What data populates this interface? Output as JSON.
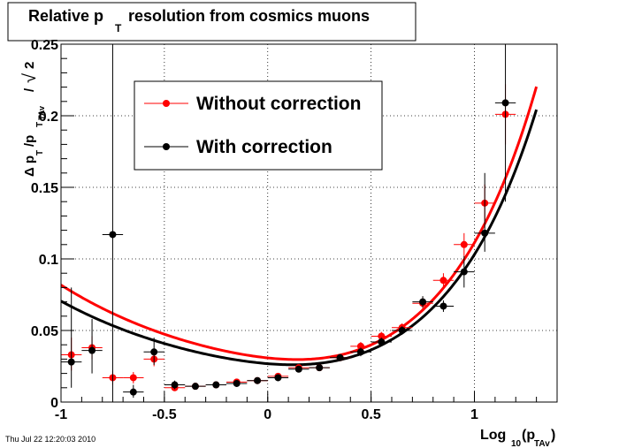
{
  "chart_data": {
    "type": "scatter",
    "title_main": "Relative p",
    "title_sub": "T",
    "title_rest": " resolution from cosmics muons",
    "ylabel": {
      "delta": "Δ p",
      "slash1": "/p",
      "sub_t": "T",
      "sub_tav": "TAv",
      "slash2": "/",
      "sqrt_sign": "√",
      "two": "2"
    },
    "xlabel": {
      "main": "Log",
      "sub_ten": "10",
      "paren_open": "(p",
      "sub_tav": "TAv",
      "paren_close": ")"
    },
    "xlim": [
      -1,
      1.4
    ],
    "ylim": [
      0,
      0.25
    ],
    "x_ticks": [
      {
        "v": -1,
        "label": "-1"
      },
      {
        "v": -0.5,
        "label": "-0.5"
      },
      {
        "v": 0,
        "label": "0"
      },
      {
        "v": 0.5,
        "label": "0.5"
      },
      {
        "v": 1,
        "label": "1"
      }
    ],
    "y_ticks": [
      {
        "v": 0,
        "label": "0"
      },
      {
        "v": 0.05,
        "label": "0.05"
      },
      {
        "v": 0.1,
        "label": "0.1"
      },
      {
        "v": 0.15,
        "label": "0.15"
      },
      {
        "v": 0.2,
        "label": "0.2"
      },
      {
        "v": 0.25,
        "label": "0.25"
      }
    ],
    "grid": true,
    "legend_placement": "top-left",
    "timestamp": "Thu Jul 22 12:20:03 2010",
    "series": [
      {
        "name": "Without correction",
        "color": "#ff0000",
        "points": [
          {
            "x": -0.95,
            "y": 0.033,
            "ylo": 0.022,
            "yhi": 0.045
          },
          {
            "x": -0.85,
            "y": 0.038,
            "ylo": 0.03,
            "yhi": 0.046
          },
          {
            "x": -0.75,
            "y": 0.017,
            "ylo": 0.012,
            "yhi": 0.022
          },
          {
            "x": -0.65,
            "y": 0.017,
            "ylo": 0.013,
            "yhi": 0.021
          },
          {
            "x": -0.55,
            "y": 0.03,
            "ylo": 0.025,
            "yhi": 0.035
          },
          {
            "x": -0.45,
            "y": 0.01,
            "ylo": 0.008,
            "yhi": 0.012
          },
          {
            "x": -0.35,
            "y": 0.011,
            "ylo": 0.009,
            "yhi": 0.013
          },
          {
            "x": -0.25,
            "y": 0.012,
            "ylo": 0.01,
            "yhi": 0.014
          },
          {
            "x": -0.15,
            "y": 0.014,
            "ylo": 0.012,
            "yhi": 0.016
          },
          {
            "x": -0.05,
            "y": 0.015,
            "ylo": 0.013,
            "yhi": 0.017
          },
          {
            "x": 0.05,
            "y": 0.018,
            "ylo": 0.016,
            "yhi": 0.02
          },
          {
            "x": 0.15,
            "y": 0.024,
            "ylo": 0.022,
            "yhi": 0.026
          },
          {
            "x": 0.25,
            "y": 0.024,
            "ylo": 0.022,
            "yhi": 0.026
          },
          {
            "x": 0.35,
            "y": 0.031,
            "ylo": 0.029,
            "yhi": 0.033
          },
          {
            "x": 0.45,
            "y": 0.039,
            "ylo": 0.036,
            "yhi": 0.042
          },
          {
            "x": 0.55,
            "y": 0.046,
            "ylo": 0.043,
            "yhi": 0.049
          },
          {
            "x": 0.65,
            "y": 0.052,
            "ylo": 0.049,
            "yhi": 0.055
          },
          {
            "x": 0.75,
            "y": 0.069,
            "ylo": 0.065,
            "yhi": 0.073
          },
          {
            "x": 0.85,
            "y": 0.085,
            "ylo": 0.08,
            "yhi": 0.09
          },
          {
            "x": 0.95,
            "y": 0.11,
            "ylo": 0.102,
            "yhi": 0.118
          },
          {
            "x": 1.05,
            "y": 0.139,
            "ylo": 0.125,
            "yhi": 0.152
          },
          {
            "x": 1.15,
            "y": 0.201,
            "ylo": 0.18,
            "yhi": 0.222
          }
        ],
        "fit": {
          "a": 0.0134,
          "b": 0.1102,
          "c": 0.0255,
          "x0": -1,
          "x1": 1.3
        }
      },
      {
        "name": "With correction",
        "color": "#000000",
        "points": [
          {
            "x": -0.95,
            "y": 0.028,
            "ylo": 0.01,
            "yhi": 0.08
          },
          {
            "x": -0.85,
            "y": 0.036,
            "ylo": 0.02,
            "yhi": 0.058
          },
          {
            "x": -0.75,
            "y": 0.117,
            "ylo": 0.0,
            "yhi": 0.25
          },
          {
            "x": -0.65,
            "y": 0.007,
            "ylo": 0.003,
            "yhi": 0.012
          },
          {
            "x": -0.55,
            "y": 0.035,
            "ylo": 0.026,
            "yhi": 0.045
          },
          {
            "x": -0.45,
            "y": 0.012,
            "ylo": 0.009,
            "yhi": 0.015
          },
          {
            "x": -0.35,
            "y": 0.011,
            "ylo": 0.009,
            "yhi": 0.013
          },
          {
            "x": -0.25,
            "y": 0.012,
            "ylo": 0.01,
            "yhi": 0.014
          },
          {
            "x": -0.15,
            "y": 0.013,
            "ylo": 0.011,
            "yhi": 0.015
          },
          {
            "x": -0.05,
            "y": 0.015,
            "ylo": 0.013,
            "yhi": 0.017
          },
          {
            "x": 0.05,
            "y": 0.017,
            "ylo": 0.015,
            "yhi": 0.019
          },
          {
            "x": 0.15,
            "y": 0.023,
            "ylo": 0.021,
            "yhi": 0.025
          },
          {
            "x": 0.25,
            "y": 0.024,
            "ylo": 0.022,
            "yhi": 0.026
          },
          {
            "x": 0.35,
            "y": 0.031,
            "ylo": 0.029,
            "yhi": 0.033
          },
          {
            "x": 0.45,
            "y": 0.035,
            "ylo": 0.032,
            "yhi": 0.038
          },
          {
            "x": 0.55,
            "y": 0.042,
            "ylo": 0.039,
            "yhi": 0.045
          },
          {
            "x": 0.65,
            "y": 0.05,
            "ylo": 0.047,
            "yhi": 0.053
          },
          {
            "x": 0.75,
            "y": 0.07,
            "ylo": 0.066,
            "yhi": 0.074
          },
          {
            "x": 0.85,
            "y": 0.067,
            "ylo": 0.063,
            "yhi": 0.071
          },
          {
            "x": 0.95,
            "y": 0.091,
            "ylo": 0.08,
            "yhi": 0.102
          },
          {
            "x": 1.05,
            "y": 0.118,
            "ylo": 0.105,
            "yhi": 0.16
          },
          {
            "x": 1.15,
            "y": 0.209,
            "ylo": 0.14,
            "yhi": 0.25
          }
        ],
        "fit": {
          "a": 0.0114,
          "b": 0.1022,
          "c": 0.022,
          "x0": -1,
          "x1": 1.3
        }
      }
    ]
  }
}
